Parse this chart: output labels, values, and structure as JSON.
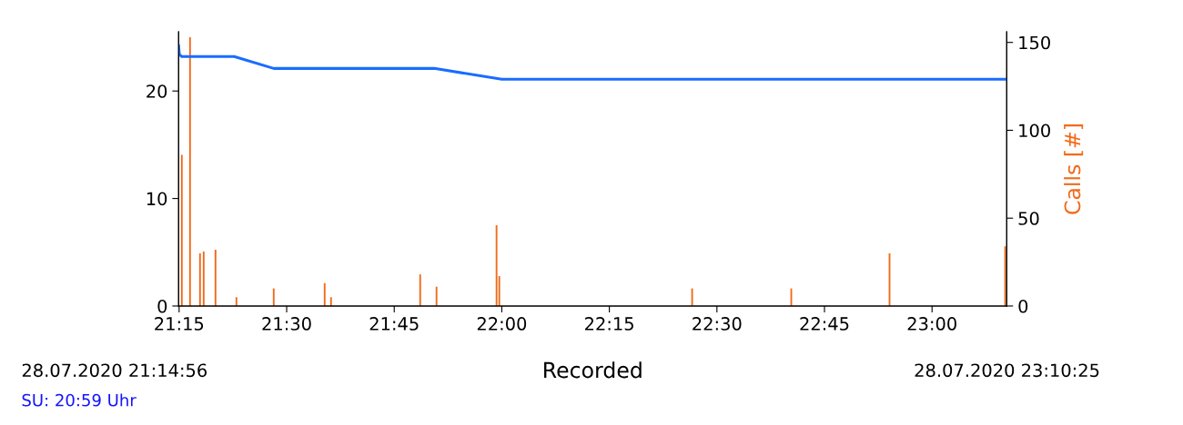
{
  "chart_data": {
    "type": "line",
    "xlabel": "Recorded",
    "y2label": "Calls [#]",
    "xlim": [
      21.2489,
      23.1736
    ],
    "xticks": [
      {
        "value": 21.25,
        "label": "21:15"
      },
      {
        "value": 21.5,
        "label": "21:30"
      },
      {
        "value": 21.75,
        "label": "21:45"
      },
      {
        "value": 22.0,
        "label": "22:00"
      },
      {
        "value": 22.25,
        "label": "22:15"
      },
      {
        "value": 22.5,
        "label": "22:30"
      },
      {
        "value": 22.75,
        "label": "22:45"
      },
      {
        "value": 23.0,
        "label": "23:00"
      }
    ],
    "ylim": [
      0,
      25.5
    ],
    "yticks": [
      0,
      10,
      20
    ],
    "y2lim": [
      0,
      156
    ],
    "y2ticks": [
      0,
      50,
      100,
      150
    ],
    "grid": false,
    "marker": "none",
    "line_style": "solid",
    "series": [
      {
        "color": "#1a6cff",
        "x": [
          21.2489,
          21.2505,
          21.2563,
          21.378,
          21.47,
          21.843,
          22.0,
          23.1736
        ],
        "values": [
          24.2,
          23.4,
          23.2,
          23.2,
          22.1,
          22.1,
          21.1,
          21.1
        ]
      },
      {
        "type": "bar",
        "axis": "y2",
        "color": "#f26a1b",
        "x": [
          21.2563,
          21.2754,
          21.2986,
          21.3071,
          21.3346,
          21.3832,
          21.4699,
          21.5883,
          21.6031,
          21.8103,
          21.8483,
          21.9878,
          21.9942,
          22.4424,
          22.6728,
          22.9012,
          23.17
        ],
        "values": [
          86,
          153,
          30,
          31,
          32,
          5,
          10,
          13,
          5,
          18,
          11,
          46,
          17,
          10,
          10,
          30,
          34
        ]
      }
    ],
    "annotations": [
      "28.07.2020 21:14:56",
      "28.07.2020 23:10:25",
      "SU: 20:59 Uhr"
    ]
  }
}
